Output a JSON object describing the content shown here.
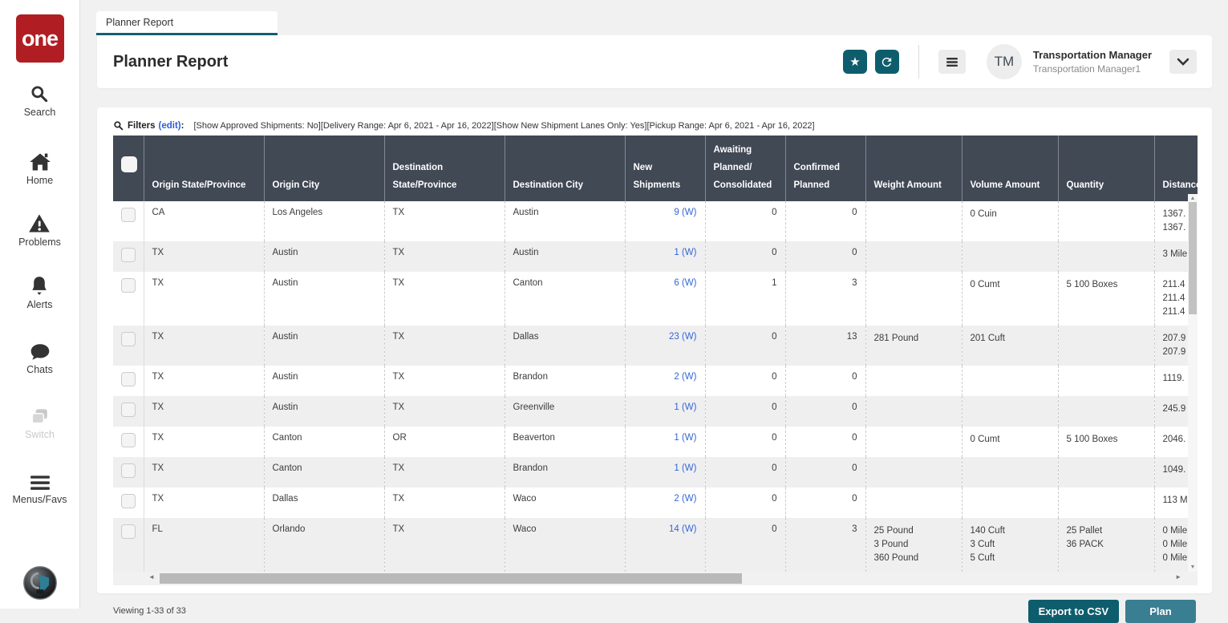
{
  "app": {
    "logo_text": "one"
  },
  "sidebar": {
    "items": [
      {
        "label": "Search"
      },
      {
        "label": "Home"
      },
      {
        "label": "Problems"
      },
      {
        "label": "Alerts"
      },
      {
        "label": "Chats"
      },
      {
        "label": "Switch"
      },
      {
        "label": "Menus/Favs"
      }
    ]
  },
  "tab": {
    "label": "Planner Report"
  },
  "header": {
    "title": "Planner Report",
    "user_initials": "TM",
    "user_name": "Transportation Manager",
    "user_role": "Transportation Manager1"
  },
  "filters": {
    "label": "Filters",
    "edit_link": "(edit)",
    "colon": ":",
    "summary": "[Show Approved Shipments: No][Delivery Range: Apr 6, 2021 - Apr 16, 2022][Show New Shipment Lanes Only: Yes][Pickup Range: Apr 6, 2021 - Apr 16, 2022]"
  },
  "table": {
    "columns": [
      "Origin State/Province",
      "Origin City",
      "Destination\nState/Province",
      "Destination City",
      "New Shipments",
      "Awaiting\nPlanned/\nConsolidated",
      "Confirmed\nPlanned",
      "Weight Amount",
      "Volume Amount",
      "Quantity",
      "Distance"
    ],
    "rows": [
      {
        "origin_state": "CA",
        "origin_city": "Los Angeles",
        "dest_state": "TX",
        "dest_city": "Austin",
        "new_shipments": "9 (W)",
        "awaiting": "0",
        "confirmed": "0",
        "weight": [],
        "volume": [
          "0 Cuin"
        ],
        "quantity": [],
        "distance": [
          "1367.",
          "1367."
        ]
      },
      {
        "origin_state": "TX",
        "origin_city": "Austin",
        "dest_state": "TX",
        "dest_city": "Austin",
        "new_shipments": "1 (W)",
        "awaiting": "0",
        "confirmed": "0",
        "weight": [],
        "volume": [],
        "quantity": [],
        "distance": [
          "3 Mile"
        ]
      },
      {
        "origin_state": "TX",
        "origin_city": "Austin",
        "dest_state": "TX",
        "dest_city": "Canton",
        "new_shipments": "6 (W)",
        "awaiting": "1",
        "confirmed": "3",
        "weight": [],
        "volume": [
          "0 Cumt"
        ],
        "quantity": [
          "5 100 Boxes"
        ],
        "distance": [
          "211.4",
          "211.4",
          "211.4"
        ]
      },
      {
        "origin_state": "TX",
        "origin_city": "Austin",
        "dest_state": "TX",
        "dest_city": "Dallas",
        "new_shipments": "23 (W)",
        "awaiting": "0",
        "confirmed": "13",
        "weight": [
          "281 Pound"
        ],
        "volume": [
          "201 Cuft"
        ],
        "quantity": [],
        "distance": [
          "207.9",
          "207.9"
        ]
      },
      {
        "origin_state": "TX",
        "origin_city": "Austin",
        "dest_state": "TX",
        "dest_city": "Brandon",
        "new_shipments": "2 (W)",
        "awaiting": "0",
        "confirmed": "0",
        "weight": [],
        "volume": [],
        "quantity": [],
        "distance": [
          "1119."
        ]
      },
      {
        "origin_state": "TX",
        "origin_city": "Austin",
        "dest_state": "TX",
        "dest_city": "Greenville",
        "new_shipments": "1 (W)",
        "awaiting": "0",
        "confirmed": "0",
        "weight": [],
        "volume": [],
        "quantity": [],
        "distance": [
          "245.9"
        ]
      },
      {
        "origin_state": "TX",
        "origin_city": "Canton",
        "dest_state": "OR",
        "dest_city": "Beaverton",
        "new_shipments": "1 (W)",
        "awaiting": "0",
        "confirmed": "0",
        "weight": [],
        "volume": [
          "0 Cumt"
        ],
        "quantity": [
          "5 100 Boxes"
        ],
        "distance": [
          "2046."
        ]
      },
      {
        "origin_state": "TX",
        "origin_city": "Canton",
        "dest_state": "TX",
        "dest_city": "Brandon",
        "new_shipments": "1 (W)",
        "awaiting": "0",
        "confirmed": "0",
        "weight": [],
        "volume": [],
        "quantity": [],
        "distance": [
          "1049."
        ]
      },
      {
        "origin_state": "TX",
        "origin_city": "Dallas",
        "dest_state": "TX",
        "dest_city": "Waco",
        "new_shipments": "2 (W)",
        "awaiting": "0",
        "confirmed": "0",
        "weight": [],
        "volume": [],
        "quantity": [],
        "distance": [
          "113 M"
        ]
      },
      {
        "origin_state": "FL",
        "origin_city": "Orlando",
        "dest_state": "TX",
        "dest_city": "Waco",
        "new_shipments": "14 (W)",
        "awaiting": "0",
        "confirmed": "3",
        "weight": [
          "25 Pound",
          "3 Pound",
          "360 Pound"
        ],
        "volume": [
          "140 Cuft",
          "3 Cuft",
          "5 Cuft"
        ],
        "quantity": [
          "25 Pallet",
          "36 PACK"
        ],
        "distance": [
          "0 Mile",
          "0 Mile",
          "0 Mile"
        ]
      }
    ]
  },
  "footer": {
    "viewing": "Viewing 1-33 of 33",
    "export_label": "Export to CSV",
    "plan_label": "Plan"
  },
  "colors": {
    "accent_teal": "#0e5d6d",
    "plan_teal": "#3a7e91",
    "logo_red": "#b01e23",
    "link_blue": "#3566d6",
    "table_header_bg": "#414955"
  }
}
